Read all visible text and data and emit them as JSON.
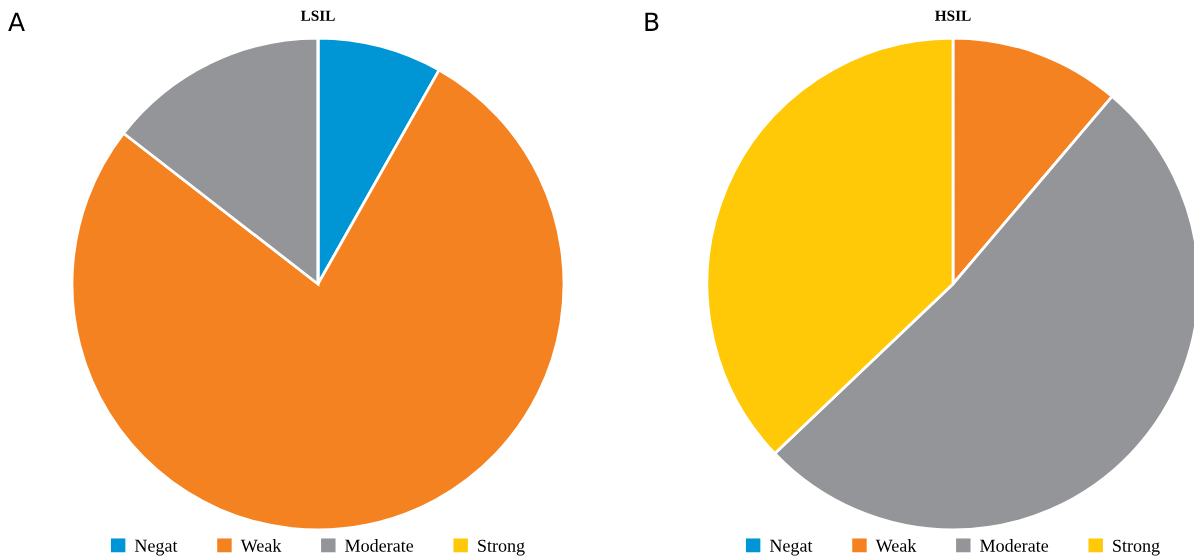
{
  "chart_data": [
    {
      "type": "pie",
      "title": "LSIL",
      "annotations": [
        "A"
      ],
      "categories": [
        "Negat",
        "Weak",
        "Moderate",
        "Strong"
      ],
      "values": [
        8.2,
        77.3,
        14.5,
        0
      ],
      "colors": [
        "#0096d6",
        "#f58220",
        "#939598",
        "#ffc907"
      ],
      "legend": "bottom"
    },
    {
      "type": "pie",
      "title": "HSIL",
      "annotations": [
        "B"
      ],
      "categories": [
        "Negat",
        "Weak",
        "Moderate",
        "Strong"
      ],
      "values": [
        0,
        11.2,
        51.7,
        37.1
      ],
      "colors": [
        "#0096d6",
        "#f58220",
        "#939598",
        "#ffc907"
      ],
      "legend": "bottom"
    }
  ]
}
